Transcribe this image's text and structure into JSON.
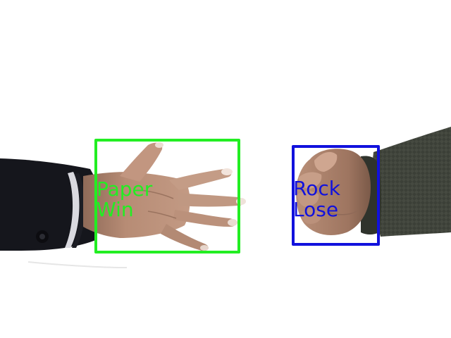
{
  "detections": [
    {
      "gesture": "Paper",
      "result": "Win",
      "color": "#22ee22"
    },
    {
      "gesture": "Rock",
      "result": "Lose",
      "color": "#1111dd"
    }
  ],
  "colors": {
    "background": "#ffffff",
    "skin": "#b58a72",
    "left_sleeve": "#15161c",
    "right_sleeve": "#3a3e36"
  }
}
